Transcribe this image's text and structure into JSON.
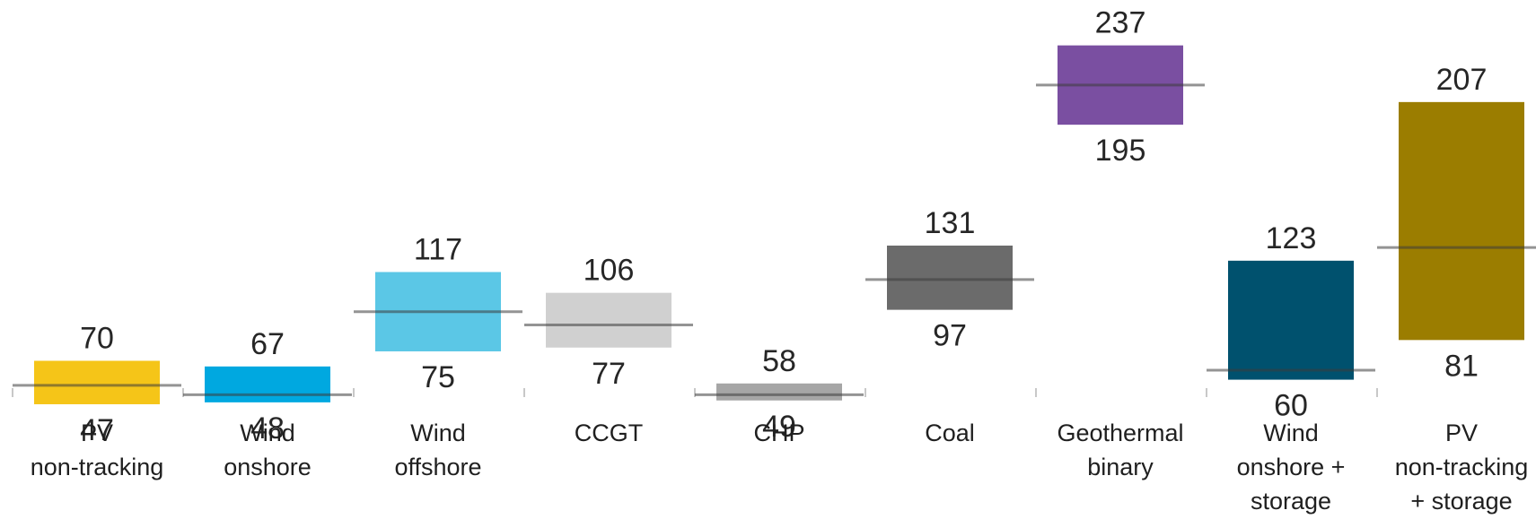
{
  "chart_data": {
    "type": "floating-bar",
    "categories": [
      "PV\nnon-tracking",
      "Wind\nonshore",
      "Wind\noffshore",
      "CCGT",
      "CHP",
      "Coal",
      "Geothermal\nbinary",
      "Wind\nonshore +\nstorage",
      "PV\nnon-tracking\n+ storage"
    ],
    "high": [
      70,
      67,
      117,
      106,
      58,
      131,
      237,
      123,
      207
    ],
    "low": [
      47,
      48,
      75,
      77,
      49,
      97,
      195,
      60,
      81
    ],
    "mid": [
      57,
      52,
      96,
      89,
      52,
      113,
      216,
      65,
      130
    ],
    "high_labels": [
      "70",
      "67",
      "117",
      "106",
      "58",
      "131",
      "237",
      "123",
      "207"
    ],
    "low_labels": [
      "47",
      "48",
      "75",
      "77",
      "49",
      "97",
      "195",
      "60",
      "81"
    ],
    "colors": [
      "#f5c518",
      "#00a8e0",
      "#5bc7e6",
      "#d0d0d0",
      "#a6a6a6",
      "#6b6b6b",
      "#7a4fa1",
      "#00516e",
      "#9b7d00"
    ],
    "legend": "none",
    "grid": false
  }
}
